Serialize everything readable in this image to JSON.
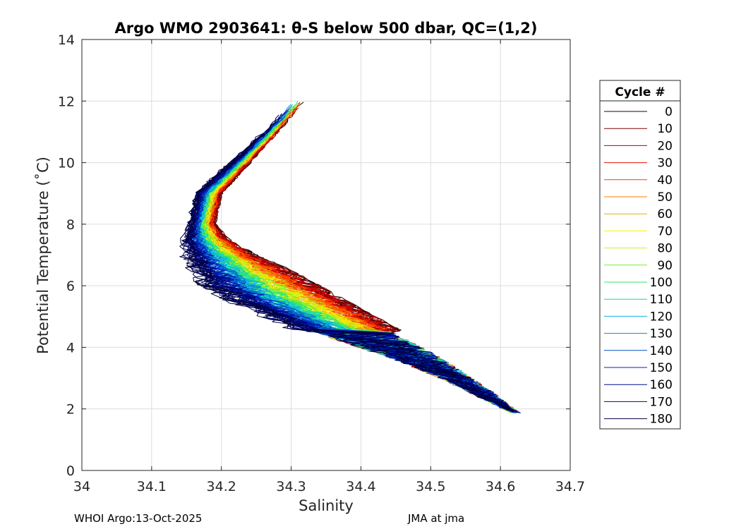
{
  "chart_data": {
    "type": "line",
    "title": "Argo WMO 2903641: θ-S below 500 dbar,  QC=(1,2)",
    "xlabel": "Salinity",
    "ylabel": "Potential Temperature (˚C)",
    "xlim": [
      34.0,
      34.7
    ],
    "ylim": [
      0,
      14
    ],
    "xticks": [
      "34",
      "34.1",
      "34.2",
      "34.3",
      "34.4",
      "34.5",
      "34.6",
      "34.7"
    ],
    "yticks": [
      "0",
      "2",
      "4",
      "6",
      "8",
      "10",
      "12",
      "14"
    ],
    "grid": true,
    "legend_title": "Cycle #",
    "legend_position": "right",
    "legend": [
      {
        "label": "0",
        "color": "#2a0000"
      },
      {
        "label": "10",
        "color": "#800000"
      },
      {
        "label": "20",
        "color": "#b00000"
      },
      {
        "label": "30",
        "color": "#e01000"
      },
      {
        "label": "40",
        "color": "#ff3a00"
      },
      {
        "label": "50",
        "color": "#ff7a00"
      },
      {
        "label": "60",
        "color": "#e0b000"
      },
      {
        "label": "70",
        "color": "#ffee00"
      },
      {
        "label": "80",
        "color": "#c8f020"
      },
      {
        "label": "90",
        "color": "#70ee30"
      },
      {
        "label": "100",
        "color": "#30e870"
      },
      {
        "label": "110",
        "color": "#10d8b0"
      },
      {
        "label": "120",
        "color": "#10b0e8"
      },
      {
        "label": "130",
        "color": "#0888c8"
      },
      {
        "label": "140",
        "color": "#0050c8"
      },
      {
        "label": "150",
        "color": "#0020c0"
      },
      {
        "label": "160",
        "color": "#000c90"
      },
      {
        "label": "170",
        "color": "#000870"
      },
      {
        "label": "180",
        "color": "#000040"
      }
    ],
    "envelope": {
      "theta": [
        12.0,
        11.0,
        10.0,
        9.0,
        8.0,
        7.5,
        7.0,
        6.5,
        6.0,
        5.5,
        5.0,
        4.5,
        4.0,
        3.5,
        3.0,
        2.5,
        2.0,
        1.85
      ],
      "s_low": [
        34.3,
        34.26,
        34.21,
        34.16,
        34.15,
        34.14,
        34.14,
        34.145,
        34.16,
        34.2,
        34.25,
        34.3,
        34.37,
        34.44,
        34.5,
        34.55,
        34.6,
        34.615
      ],
      "s_high": [
        34.32,
        34.28,
        34.24,
        34.2,
        34.19,
        34.21,
        34.25,
        34.3,
        34.34,
        34.38,
        34.42,
        34.46,
        34.5,
        34.535,
        34.565,
        34.595,
        34.62,
        34.63
      ]
    }
  },
  "footer": {
    "left": "WHOI Argo:13-Oct-2025",
    "right": "JMA at jma"
  }
}
